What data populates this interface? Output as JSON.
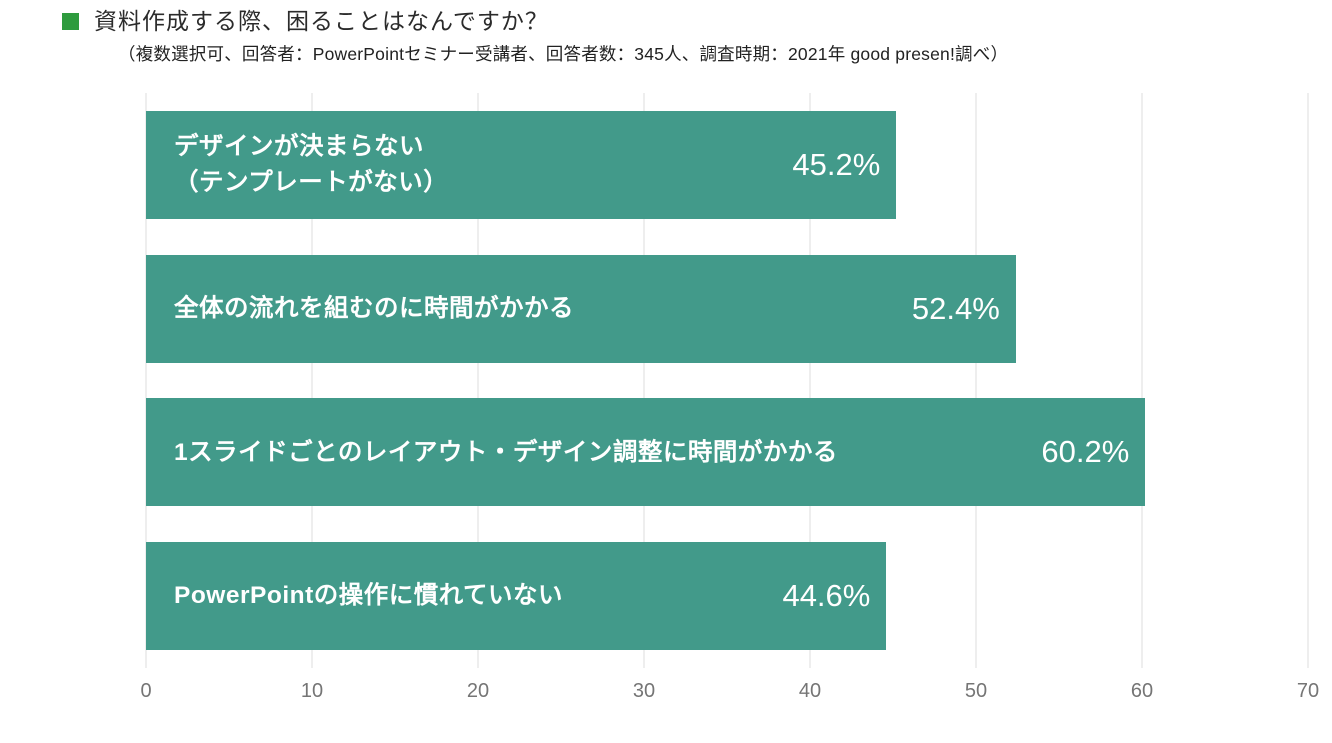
{
  "header": {
    "title": "資料作成する際、困ることはなんですか？",
    "subtitle": "（複数選択可、回答者：PowerPointセミナー受講者、回答者数：345人、調査時期：2021年 good presen!調べ）",
    "bullet_color": "#2e9b3e"
  },
  "chart_data": {
    "type": "bar",
    "orientation": "horizontal",
    "title": "資料作成する際、困ることはなんですか？",
    "subtitle": "（複数選択可、回答者：PowerPointセミナー受講者、回答者数：345人、調査時期：2021年 good presen!調べ）",
    "categories": [
      "デザインが決まらない\n（テンプレートがない）",
      "全体の流れを組むのに時間がかかる",
      "1スライドごとのレイアウト・デザイン調整に時間がかかる",
      "PowerPointの操作に慣れていない"
    ],
    "values": [
      45.2,
      52.4,
      60.2,
      44.6
    ],
    "value_labels": [
      "45.2%",
      "52.4%",
      "60.2%",
      "44.6%"
    ],
    "xlabel": "",
    "ylabel": "",
    "xlim": [
      0,
      70
    ],
    "x_ticks": [
      0,
      10,
      20,
      30,
      40,
      50,
      60,
      70
    ],
    "grid": true,
    "legend": false,
    "colors": {
      "bar": "#429a8a",
      "gridline": "#dcdcdc",
      "axis_text": "#757575",
      "bar_text": "#ffffff"
    }
  }
}
